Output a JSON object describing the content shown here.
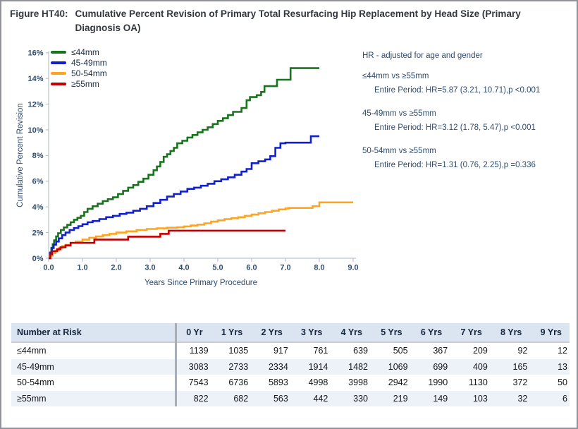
{
  "title": {
    "prefix": "Figure HT40:",
    "text": "Cumulative Percent Revision of Primary Total Resurfacing Hip Replacement by Head Size (Primary Diagnosis OA)"
  },
  "chart_data": {
    "type": "line",
    "step": "after",
    "title": "",
    "xlabel": "Years Since Primary Procedure",
    "ylabel": "Cumulative Percent Revision",
    "xlim": [
      0,
      9
    ],
    "ylim": [
      0,
      16
    ],
    "grid": false,
    "legend_position": "top-left",
    "x_ticks": [
      "0.0",
      "1.0",
      "2.0",
      "3.0",
      "4.0",
      "5.0",
      "6.0",
      "7.0",
      "8.0",
      "9.0"
    ],
    "y_ticks": [
      "0%",
      "2%",
      "4%",
      "6%",
      "8%",
      "10%",
      "12%",
      "14%",
      "16%"
    ],
    "axis_color": "#b9c2cc",
    "tick_label_color": "#2f4b6e",
    "series": [
      {
        "name": "≤44mm",
        "color": "#17741c",
        "points": [
          [
            0,
            0
          ],
          [
            0.04,
            0.4
          ],
          [
            0.08,
            0.8
          ],
          [
            0.12,
            1.1
          ],
          [
            0.16,
            1.4
          ],
          [
            0.22,
            1.7
          ],
          [
            0.28,
            1.95
          ],
          [
            0.36,
            2.2
          ],
          [
            0.45,
            2.4
          ],
          [
            0.55,
            2.6
          ],
          [
            0.65,
            2.8
          ],
          [
            0.75,
            3.0
          ],
          [
            0.85,
            3.15
          ],
          [
            0.95,
            3.3
          ],
          [
            1.05,
            3.6
          ],
          [
            1.15,
            3.85
          ],
          [
            1.3,
            4.05
          ],
          [
            1.45,
            4.25
          ],
          [
            1.6,
            4.45
          ],
          [
            1.75,
            4.6
          ],
          [
            1.9,
            4.75
          ],
          [
            2.05,
            5.0
          ],
          [
            2.2,
            5.25
          ],
          [
            2.35,
            5.5
          ],
          [
            2.5,
            5.7
          ],
          [
            2.65,
            5.95
          ],
          [
            2.8,
            6.2
          ],
          [
            2.95,
            6.5
          ],
          [
            3.1,
            6.85
          ],
          [
            3.2,
            7.15
          ],
          [
            3.3,
            7.5
          ],
          [
            3.4,
            7.9
          ],
          [
            3.5,
            8.1
          ],
          [
            3.6,
            8.35
          ],
          [
            3.7,
            8.6
          ],
          [
            3.8,
            8.95
          ],
          [
            3.95,
            9.15
          ],
          [
            4.1,
            9.4
          ],
          [
            4.25,
            9.6
          ],
          [
            4.4,
            9.8
          ],
          [
            4.55,
            10.0
          ],
          [
            4.7,
            10.2
          ],
          [
            4.85,
            10.45
          ],
          [
            5.0,
            10.7
          ],
          [
            5.15,
            10.9
          ],
          [
            5.3,
            11.15
          ],
          [
            5.45,
            11.4
          ],
          [
            5.7,
            11.7
          ],
          [
            5.85,
            12.3
          ],
          [
            5.95,
            12.55
          ],
          [
            6.15,
            12.7
          ],
          [
            6.28,
            12.95
          ],
          [
            6.38,
            13.4
          ],
          [
            6.75,
            13.9
          ],
          [
            7.15,
            14.8
          ],
          [
            8.0,
            14.8
          ]
        ]
      },
      {
        "name": "45-49mm",
        "color": "#1120c8",
        "points": [
          [
            0,
            0
          ],
          [
            0.05,
            0.45
          ],
          [
            0.1,
            0.8
          ],
          [
            0.15,
            1.05
          ],
          [
            0.22,
            1.3
          ],
          [
            0.3,
            1.55
          ],
          [
            0.4,
            1.8
          ],
          [
            0.5,
            2.0
          ],
          [
            0.62,
            2.2
          ],
          [
            0.75,
            2.35
          ],
          [
            0.88,
            2.5
          ],
          [
            1.0,
            2.65
          ],
          [
            1.15,
            2.8
          ],
          [
            1.3,
            2.9
          ],
          [
            1.5,
            3.05
          ],
          [
            1.7,
            3.2
          ],
          [
            1.9,
            3.3
          ],
          [
            2.1,
            3.45
          ],
          [
            2.3,
            3.55
          ],
          [
            2.5,
            3.7
          ],
          [
            2.7,
            3.85
          ],
          [
            2.9,
            4.05
          ],
          [
            3.1,
            4.3
          ],
          [
            3.3,
            4.55
          ],
          [
            3.5,
            4.8
          ],
          [
            3.7,
            5.0
          ],
          [
            3.9,
            5.2
          ],
          [
            4.1,
            5.4
          ],
          [
            4.3,
            5.5
          ],
          [
            4.5,
            5.65
          ],
          [
            4.7,
            5.8
          ],
          [
            4.9,
            6.0
          ],
          [
            5.1,
            6.15
          ],
          [
            5.3,
            6.3
          ],
          [
            5.5,
            6.5
          ],
          [
            5.7,
            6.75
          ],
          [
            5.85,
            6.95
          ],
          [
            6.0,
            7.4
          ],
          [
            6.2,
            7.55
          ],
          [
            6.4,
            7.7
          ],
          [
            6.55,
            7.95
          ],
          [
            6.7,
            8.6
          ],
          [
            6.85,
            8.95
          ],
          [
            7.0,
            9.0
          ],
          [
            7.7,
            9.0
          ],
          [
            7.75,
            9.5
          ],
          [
            8.0,
            9.5
          ]
        ]
      },
      {
        "name": "50-54mm",
        "color": "#ffa41e",
        "points": [
          [
            0,
            0
          ],
          [
            0.05,
            0.2
          ],
          [
            0.12,
            0.4
          ],
          [
            0.2,
            0.6
          ],
          [
            0.3,
            0.8
          ],
          [
            0.4,
            0.95
          ],
          [
            0.5,
            1.05
          ],
          [
            0.65,
            1.2
          ],
          [
            0.8,
            1.3
          ],
          [
            1.0,
            1.45
          ],
          [
            1.2,
            1.6
          ],
          [
            1.4,
            1.7
          ],
          [
            1.6,
            1.8
          ],
          [
            1.8,
            1.9
          ],
          [
            2.0,
            2.0
          ],
          [
            2.3,
            2.1
          ],
          [
            2.6,
            2.2
          ],
          [
            2.9,
            2.28
          ],
          [
            3.2,
            2.33
          ],
          [
            3.5,
            2.38
          ],
          [
            3.8,
            2.42
          ],
          [
            4.0,
            2.48
          ],
          [
            4.2,
            2.55
          ],
          [
            4.4,
            2.62
          ],
          [
            4.6,
            2.72
          ],
          [
            4.8,
            2.85
          ],
          [
            5.0,
            2.95
          ],
          [
            5.2,
            3.05
          ],
          [
            5.4,
            3.12
          ],
          [
            5.6,
            3.2
          ],
          [
            5.8,
            3.3
          ],
          [
            6.0,
            3.4
          ],
          [
            6.2,
            3.5
          ],
          [
            6.4,
            3.6
          ],
          [
            6.6,
            3.7
          ],
          [
            6.8,
            3.8
          ],
          [
            7.0,
            3.88
          ],
          [
            7.1,
            3.92
          ],
          [
            7.8,
            4.05
          ],
          [
            8.0,
            4.35
          ],
          [
            9.0,
            4.35
          ]
        ]
      },
      {
        "name": "≥55mm",
        "color": "#c00000",
        "points": [
          [
            0,
            0
          ],
          [
            0.05,
            0.3
          ],
          [
            0.1,
            0.55
          ],
          [
            0.25,
            0.7
          ],
          [
            0.35,
            0.85
          ],
          [
            0.5,
            1.0
          ],
          [
            0.65,
            1.2
          ],
          [
            1.35,
            1.45
          ],
          [
            2.35,
            1.68
          ],
          [
            3.3,
            1.9
          ],
          [
            3.55,
            2.15
          ],
          [
            7.0,
            2.15
          ]
        ]
      }
    ]
  },
  "hr_note": {
    "heading": "HR - adjusted for age and gender",
    "comparisons": [
      {
        "label": "≤44mm vs ≥55mm",
        "detail": "Entire Period: HR=5.87 (3.21, 10.71),p <0.001"
      },
      {
        "label": "45-49mm vs ≥55mm",
        "detail": "Entire Period: HR=3.12 (1.78, 5.47),p <0.001"
      },
      {
        "label": "50-54mm vs ≥55mm",
        "detail": "Entire Period: HR=1.31 (0.76, 2.25),p =0.336"
      }
    ]
  },
  "risk_table": {
    "title": "Number at Risk",
    "columns": [
      "0 Yr",
      "1 Yrs",
      "2 Yrs",
      "3 Yrs",
      "4 Yrs",
      "5 Yrs",
      "6 Yrs",
      "7 Yrs",
      "8 Yrs",
      "9 Yrs"
    ],
    "rows": [
      {
        "label": "≤44mm",
        "values": [
          "1139",
          "1035",
          "917",
          "761",
          "639",
          "505",
          "367",
          "209",
          "92",
          "12"
        ]
      },
      {
        "label": "45-49mm",
        "values": [
          "3083",
          "2733",
          "2334",
          "1914",
          "1482",
          "1069",
          "699",
          "409",
          "165",
          "13"
        ]
      },
      {
        "label": "50-54mm",
        "values": [
          "7543",
          "6736",
          "5893",
          "4998",
          "3998",
          "2942",
          "1990",
          "1130",
          "372",
          "50"
        ]
      },
      {
        "label": "≥55mm",
        "values": [
          "822",
          "682",
          "563",
          "442",
          "330",
          "219",
          "149",
          "103",
          "32",
          "6"
        ]
      }
    ]
  }
}
